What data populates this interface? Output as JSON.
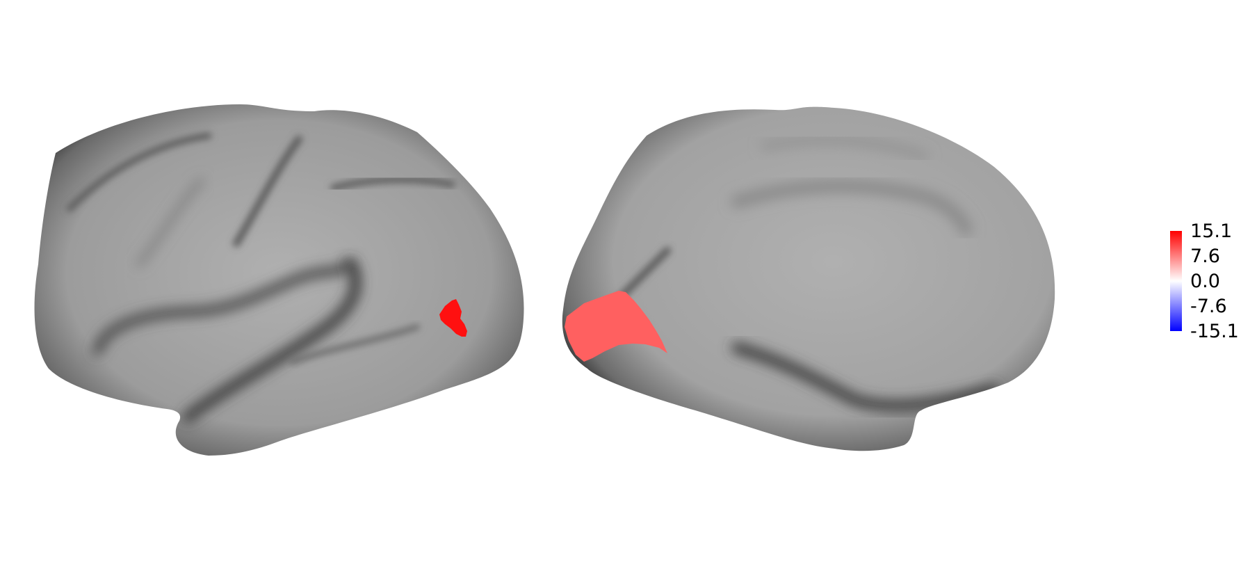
{
  "figure": {
    "views": [
      {
        "name": "lateral",
        "hemisphere": "left",
        "highlight_value": 15.1
      },
      {
        "name": "medial",
        "hemisphere": "left",
        "highlight_value": 7.6
      }
    ]
  },
  "colorbar": {
    "min": -15.1,
    "max": 15.1,
    "colors": {
      "max": "#ff0000",
      "mid": "#ffffff",
      "min": "#0000ff"
    },
    "ticks": [
      {
        "label": "15.1",
        "value": 15.1
      },
      {
        "label": "7.6",
        "value": 7.6
      },
      {
        "label": "0.0",
        "value": 0.0
      },
      {
        "label": "-7.6",
        "value": -7.6
      },
      {
        "label": "-15.1",
        "value": -15.1
      }
    ]
  },
  "surface_color": "#a8a8a8"
}
